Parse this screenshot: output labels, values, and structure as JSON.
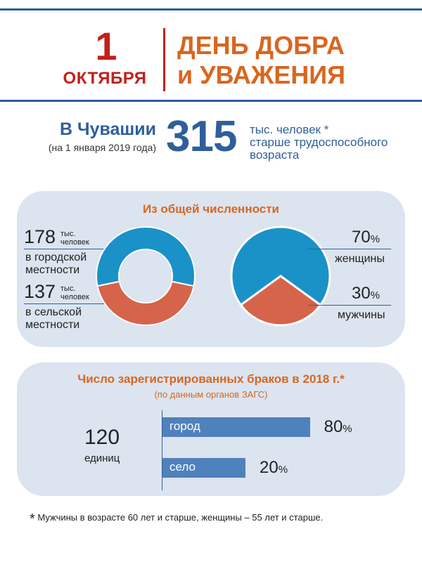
{
  "header": {
    "day_number": "1",
    "month": "ОКТЯБРЯ",
    "title_line1": "ДЕНЬ ДОБРА",
    "title_line2": "и УВАЖЕНИЯ"
  },
  "summary": {
    "region": "В Чувашии",
    "date_note": "(на 1 января 2019 года)",
    "value": "315",
    "desc_line1": "тыс. человек *",
    "desc_line2": "старше  трудоспособного",
    "desc_line3": "возраста"
  },
  "population_panel": {
    "title": "Из общей численности",
    "urban_value": "178",
    "urban_unit1": "тыс.",
    "urban_unit2": "человек",
    "urban_label1": "в городской",
    "urban_label2": "местности",
    "rural_value": "137",
    "rural_unit1": "тыс.",
    "rural_unit2": "человек",
    "rural_label1": "в сельской",
    "rural_label2": "местности",
    "women_pct": "70",
    "women_label": "женщины",
    "men_pct": "30",
    "men_label": "мужчины",
    "pct_sign": "%"
  },
  "marriage_panel": {
    "title": "Число зарегистрированных браков в 2018 г.*",
    "subtitle": "(по данным органов ЗАГС)",
    "total_value": "120",
    "total_unit": "единиц",
    "city_label": "город",
    "city_pct": "80",
    "village_label": "село",
    "village_pct": "20",
    "pct_sign": "%"
  },
  "footnote": {
    "star": "*",
    "text": "Мужчины в возрасте 60 лет и старше, женщины – 55 лет и старше."
  },
  "colors": {
    "blue": "#2f5f9a",
    "red": "#c0211d",
    "orange": "#d96620",
    "donut_blue": "#1a92c8",
    "donut_orange": "#d5644b",
    "bar_blue": "#4f81bd",
    "panel_bg": "#dbe4ef"
  },
  "chart_data": [
    {
      "type": "pie",
      "categories": [
        "в городской местности",
        "в сельской местности"
      ],
      "values": [
        178,
        137
      ]
    },
    {
      "type": "pie",
      "categories": [
        "женщины",
        "мужчины"
      ],
      "values": [
        70,
        30
      ]
    },
    {
      "type": "bar",
      "categories": [
        "город",
        "село"
      ],
      "values": [
        80,
        20
      ]
    }
  ]
}
